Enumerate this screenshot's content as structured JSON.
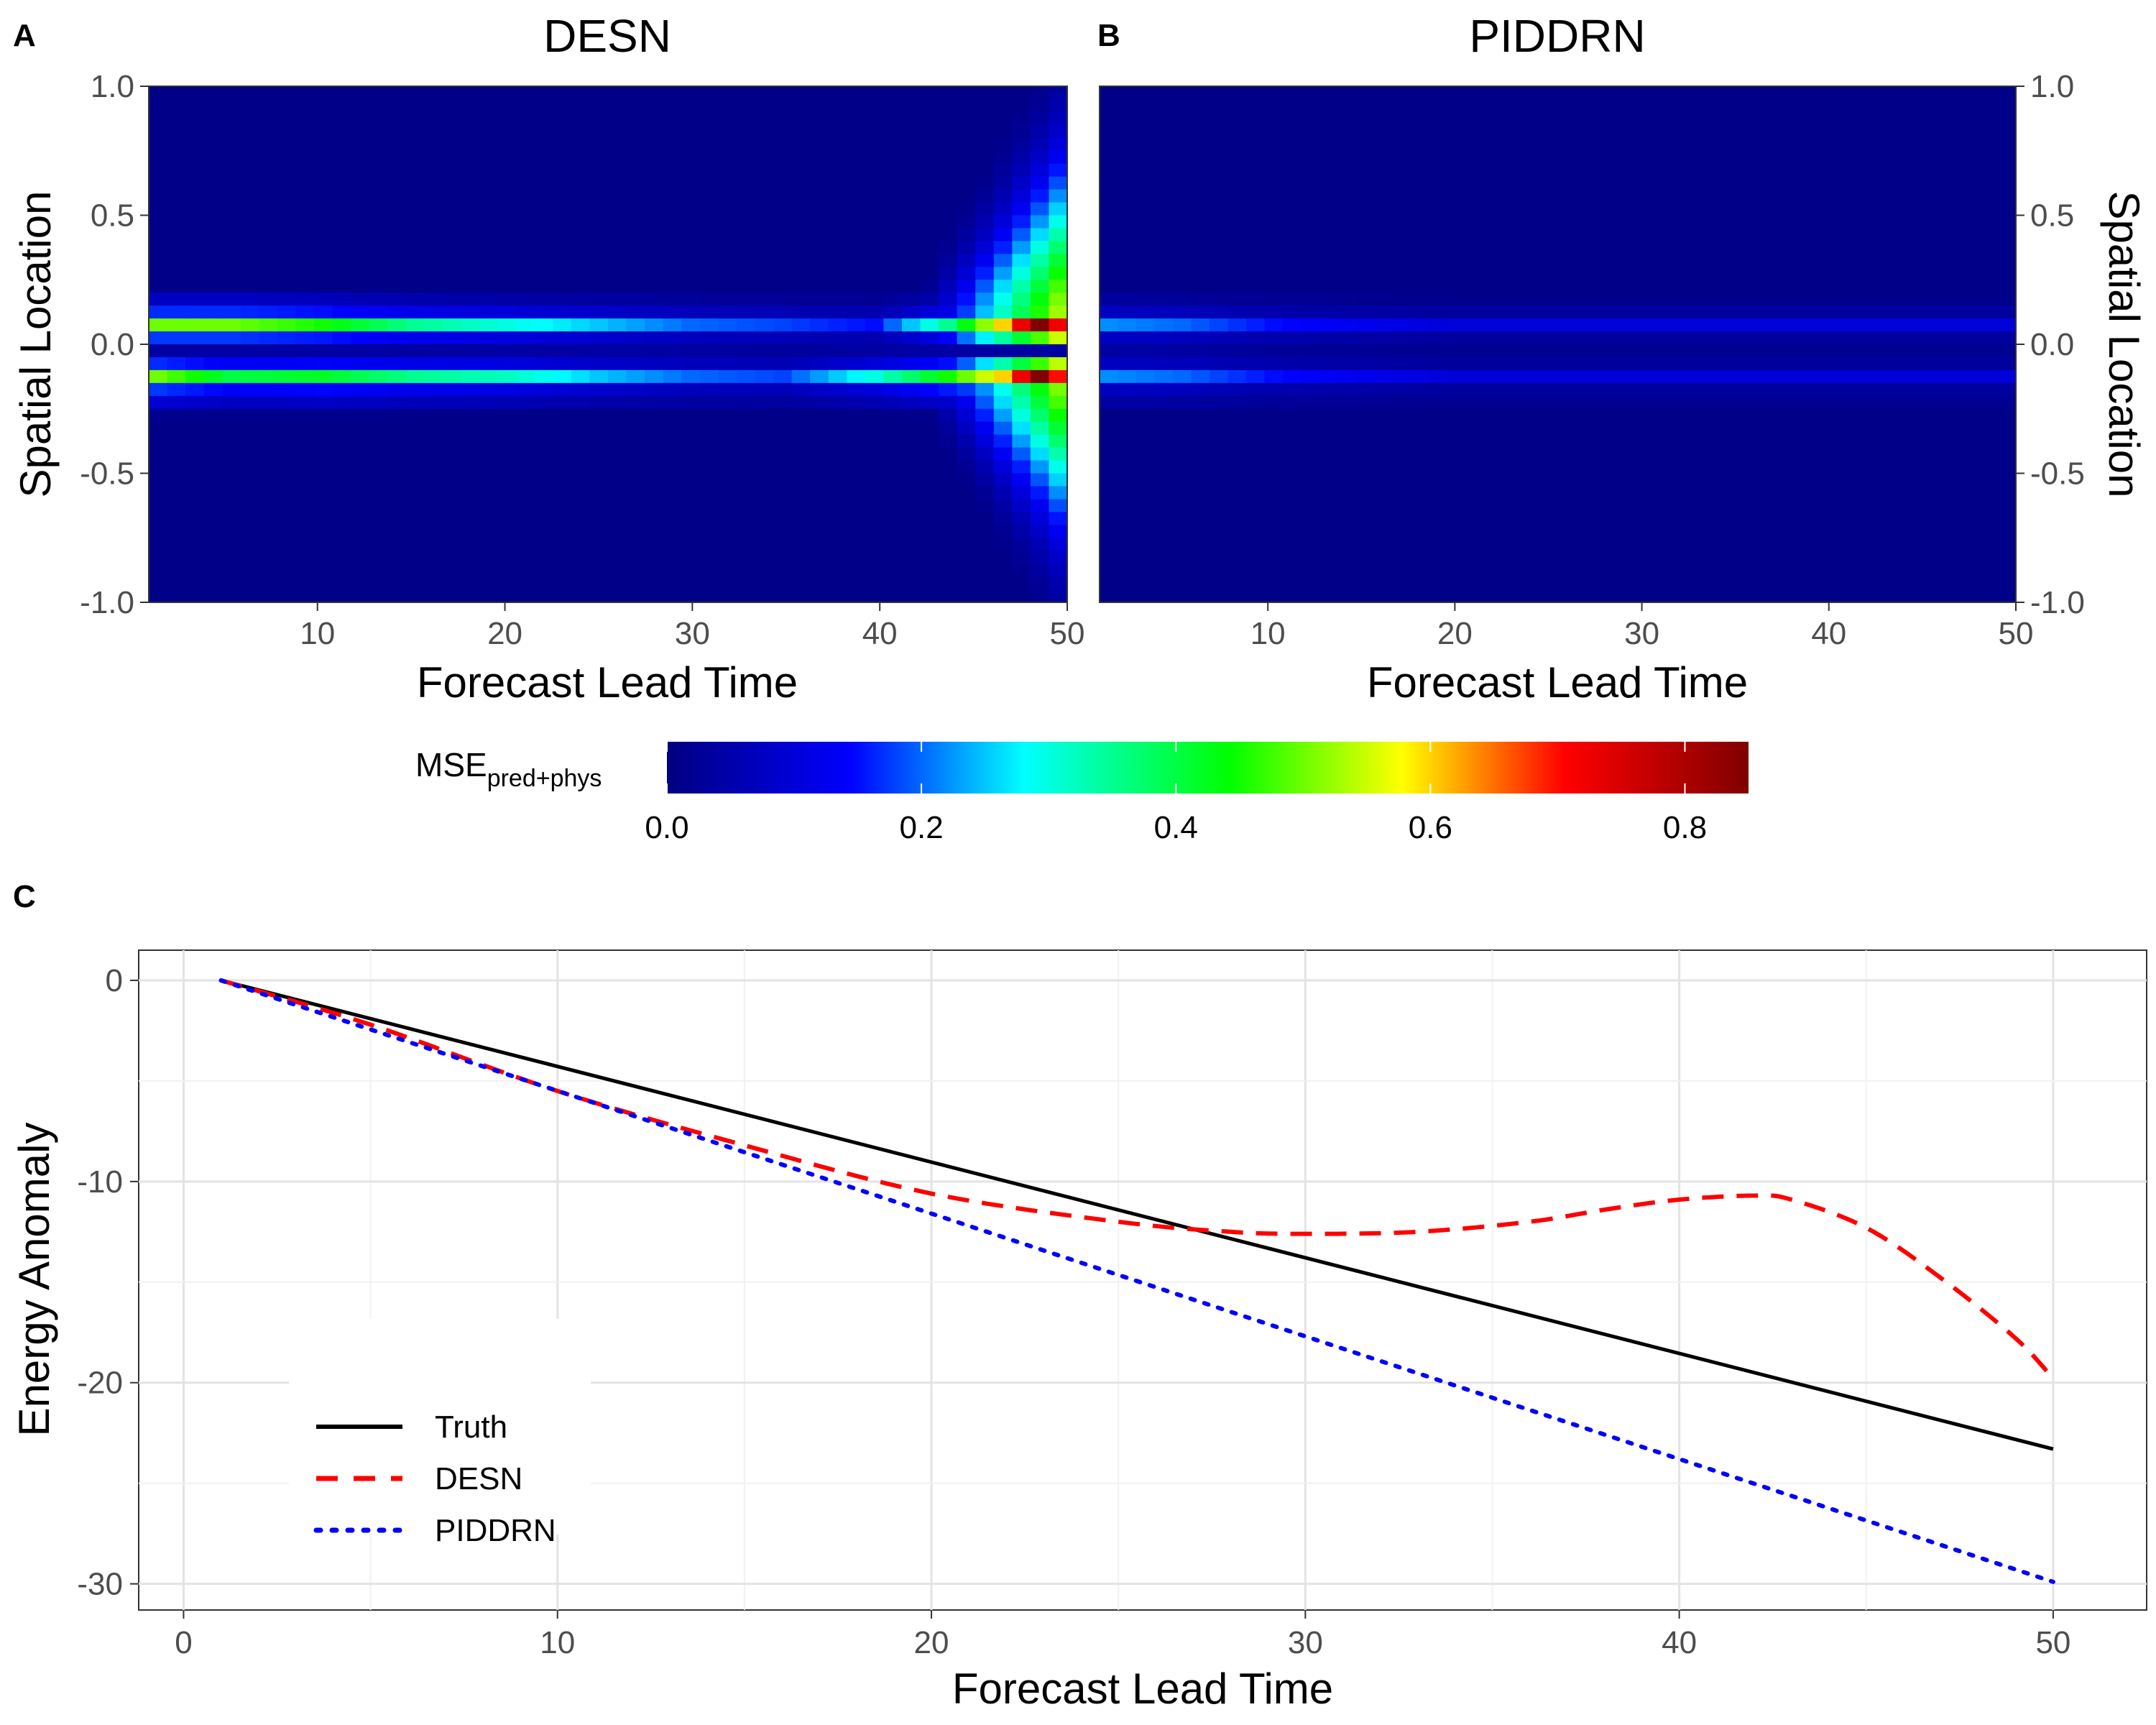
{
  "panels": {
    "a": {
      "letter": "A",
      "title": "DESN"
    },
    "b": {
      "letter": "B",
      "title": "PIDDRN"
    },
    "c": {
      "letter": "C"
    }
  },
  "legend": {
    "colorbar": {
      "label_main": "MSE",
      "label_sub": "pred+phys"
    }
  },
  "chart_data": [
    {
      "type": "heatmap",
      "title": "DESN",
      "xlabel": "Forecast Lead Time",
      "ylabel": "Spatial Location",
      "xlim": [
        1,
        50
      ],
      "ylim": [
        -1.0,
        1.0
      ],
      "x_ticks": [
        10,
        20,
        30,
        40,
        50
      ],
      "y_ticks": [
        "-1.0",
        "-0.5",
        "0.0",
        "0.5",
        "1.0"
      ],
      "value_range": [
        0,
        0.85
      ],
      "description_of_values": "Estimated MSE field; error concentrated at spatial location ~+0.07 and ~-0.13 bands; growing sharply after lead time ~45 reaching ~0.85",
      "bands": [
        {
          "y": 0.07,
          "values_at_x": {
            "1": 0.5,
            "5": 0.5,
            "10": 0.45,
            "15": 0.35,
            "20": 0.3,
            "25": 0.25,
            "30": 0.2,
            "35": 0.18,
            "40": 0.15,
            "44": 0.35,
            "47": 0.6,
            "49": 0.85,
            "50": 0.72
          }
        },
        {
          "y": -0.13,
          "values_at_x": {
            "1": 0.5,
            "5": 0.4,
            "10": 0.42,
            "15": 0.35,
            "20": 0.32,
            "25": 0.25,
            "30": 0.2,
            "35": 0.18,
            "40": 0.3,
            "44": 0.45,
            "47": 0.6,
            "49": 0.85,
            "50": 0.7
          }
        }
      ]
    },
    {
      "type": "heatmap",
      "title": "PIDDRN",
      "xlabel": "Forecast Lead Time",
      "ylabel": "Spatial Location",
      "xlim": [
        1,
        50
      ],
      "ylim": [
        -1.0,
        1.0
      ],
      "x_ticks": [
        10,
        20,
        30,
        40,
        50
      ],
      "y_ticks": [
        "-1.0",
        "-0.5",
        "0.0",
        "0.5",
        "1.0"
      ],
      "value_range": [
        0,
        0.85
      ],
      "description_of_values": "Low MSE everywhere; faint bands near +0.07 and -0.13 around 0.15-0.25 at early lead times decaying to ~0.1",
      "bands": [
        {
          "y": 0.07,
          "values_at_x": {
            "1": 0.22,
            "5": 0.2,
            "10": 0.15,
            "20": 0.1,
            "30": 0.1,
            "40": 0.1,
            "50": 0.1
          }
        },
        {
          "y": -0.13,
          "values_at_x": {
            "1": 0.22,
            "5": 0.2,
            "10": 0.15,
            "20": 0.1,
            "30": 0.1,
            "40": 0.1,
            "50": 0.1
          }
        }
      ]
    },
    {
      "type": "colorbar",
      "ticks": [
        "0.0",
        "0.2",
        "0.4",
        "0.6",
        "0.8"
      ],
      "range": [
        0,
        0.85
      ],
      "stops": [
        "#000080",
        "#0000ff",
        "#00ffff",
        "#00ff00",
        "#ffff00",
        "#ff0000",
        "#800000"
      ]
    },
    {
      "type": "line",
      "xlabel": "Forecast Lead Time",
      "ylabel": "Energy Anomaly",
      "xlim": [
        -1.2,
        52.5
      ],
      "ylim": [
        -31.3,
        1.5
      ],
      "x_ticks": [
        "0",
        "10",
        "20",
        "30",
        "40",
        "50"
      ],
      "y_ticks": [
        "0",
        "-10",
        "-20",
        "-30"
      ],
      "legend_position": "bottom-left",
      "series": [
        {
          "name": "Truth",
          "color": "#000000",
          "style": "solid",
          "x": [
            1,
            50
          ],
          "y": [
            0,
            -23.3
          ]
        },
        {
          "name": "DESN",
          "color": "#ff0000",
          "style": "dashed",
          "x": [
            1,
            5,
            10,
            15,
            20,
            25,
            28,
            30,
            33,
            36,
            38,
            40,
            42,
            43,
            45,
            47,
            49,
            50
          ],
          "y": [
            0,
            -2.2,
            -5.5,
            -8.2,
            -10.6,
            -12.0,
            -12.5,
            -12.6,
            -12.5,
            -12.0,
            -11.4,
            -10.9,
            -10.7,
            -10.9,
            -12.3,
            -14.8,
            -17.8,
            -19.8
          ]
        },
        {
          "name": "PIDDRN",
          "color": "#0000ff",
          "style": "dotted",
          "x": [
            1,
            50
          ],
          "y": [
            0,
            -29.9
          ]
        }
      ]
    }
  ]
}
